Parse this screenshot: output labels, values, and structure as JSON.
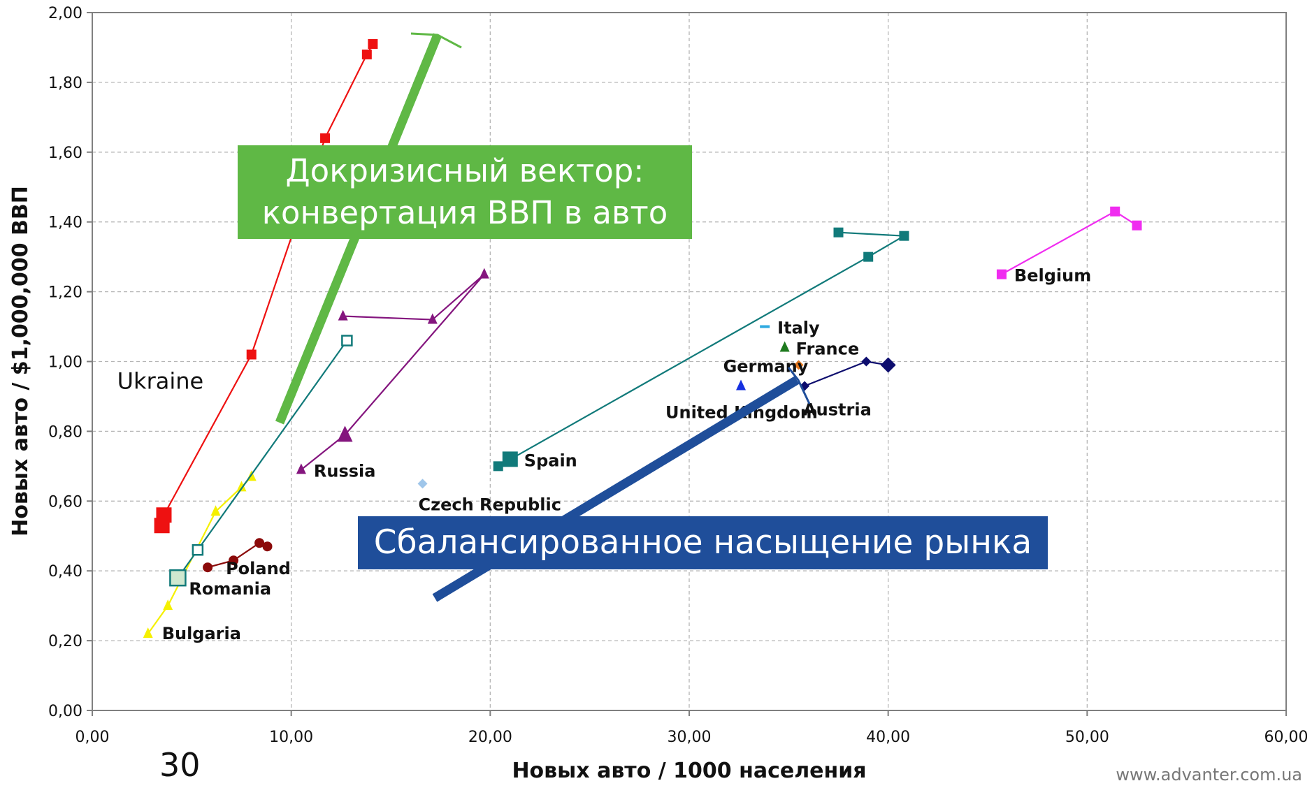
{
  "chart_data": {
    "type": "scatter",
    "title": "",
    "xlabel": "Новых авто / 1000 населения",
    "ylabel": "Новых авто / $1,000,000 ВВП",
    "xlim": [
      0,
      60
    ],
    "ylim": [
      0,
      2
    ],
    "x_ticks": [
      "0,00",
      "10,00",
      "20,00",
      "30,00",
      "40,00",
      "50,00",
      "60,00"
    ],
    "y_ticks": [
      "0,00",
      "0,20",
      "0,40",
      "0,60",
      "0,80",
      "1,00",
      "1,20",
      "1,40",
      "1,60",
      "1,80",
      "2,00"
    ],
    "grid": true,
    "series": [
      {
        "name": "Ukraine",
        "color": "#ee1111",
        "marker": "square",
        "points": [
          [
            3.5,
            0.53
          ],
          [
            3.6,
            0.56
          ],
          [
            8.0,
            1.02
          ],
          [
            11.7,
            1.64
          ],
          [
            13.8,
            1.88
          ],
          [
            14.1,
            1.91
          ]
        ]
      },
      {
        "name": "Bulgaria",
        "color": "#f5f000",
        "marker": "triangle",
        "points": [
          [
            2.8,
            0.22
          ],
          [
            3.8,
            0.3
          ],
          [
            6.2,
            0.57
          ],
          [
            7.5,
            0.64
          ],
          [
            8.0,
            0.67
          ]
        ]
      },
      {
        "name": "Romania",
        "color": "#117a7a",
        "marker": "hollow-square",
        "points": [
          [
            4.3,
            0.38
          ],
          [
            5.3,
            0.46
          ],
          [
            12.8,
            1.06
          ]
        ]
      },
      {
        "name": "Poland",
        "color": "#8b0a0a",
        "marker": "circle",
        "points": [
          [
            5.8,
            0.41
          ],
          [
            7.1,
            0.43
          ],
          [
            8.4,
            0.48
          ],
          [
            8.8,
            0.47
          ]
        ]
      },
      {
        "name": "Russia",
        "color": "#84157e",
        "marker": "triangle",
        "points": [
          [
            10.5,
            0.69
          ],
          [
            12.7,
            0.79
          ],
          [
            19.7,
            1.25
          ],
          [
            17.1,
            1.12
          ],
          [
            12.6,
            1.13
          ]
        ]
      },
      {
        "name": "Spain",
        "color": "#117a7a",
        "marker": "square",
        "points": [
          [
            21.0,
            0.72
          ],
          [
            20.4,
            0.7
          ],
          [
            39.0,
            1.3
          ],
          [
            40.8,
            1.36
          ],
          [
            37.5,
            1.37
          ]
        ]
      },
      {
        "name": "Czech Republic",
        "color": "#9fc6ea",
        "marker": "diamond",
        "points": [
          [
            16.6,
            0.65
          ]
        ]
      },
      {
        "name": "Italy",
        "color": "#2ea9e0",
        "marker": "dash",
        "points": [
          [
            33.8,
            1.1
          ]
        ]
      },
      {
        "name": "France",
        "color": "#1e7a1e",
        "marker": "triangle",
        "points": [
          [
            34.8,
            1.04
          ]
        ]
      },
      {
        "name": "Germany",
        "color": "#e8781c",
        "marker": "diamond",
        "points": [
          [
            35.5,
            0.99
          ]
        ]
      },
      {
        "name": "United Kingdom",
        "color": "#1530e0",
        "marker": "triangle",
        "points": [
          [
            32.6,
            0.93
          ]
        ]
      },
      {
        "name": "Austria",
        "color": "#0d0d6e",
        "marker": "diamond",
        "points": [
          [
            35.8,
            0.93
          ],
          [
            38.9,
            1.0
          ],
          [
            40.0,
            0.99
          ]
        ]
      },
      {
        "name": "Belgium",
        "color": "#f02cf0",
        "marker": "square",
        "points": [
          [
            45.7,
            1.25
          ],
          [
            51.4,
            1.43
          ],
          [
            52.5,
            1.39
          ]
        ]
      }
    ],
    "annotations": [
      {
        "text": "Докризисный вектор:\nконвертация ВВП в авто",
        "color": "#5fb845"
      },
      {
        "text": "Сбалансированное насыщение рынка",
        "color": "#1f4e9a"
      }
    ]
  },
  "green_box": {
    "line1": "Докризисный вектор:",
    "line2": "конвертация ВВП в авто"
  },
  "blue_box": {
    "text": "Сбалансированное насыщение рынка"
  },
  "page_number": "30",
  "website": "www.advanter.com.ua"
}
